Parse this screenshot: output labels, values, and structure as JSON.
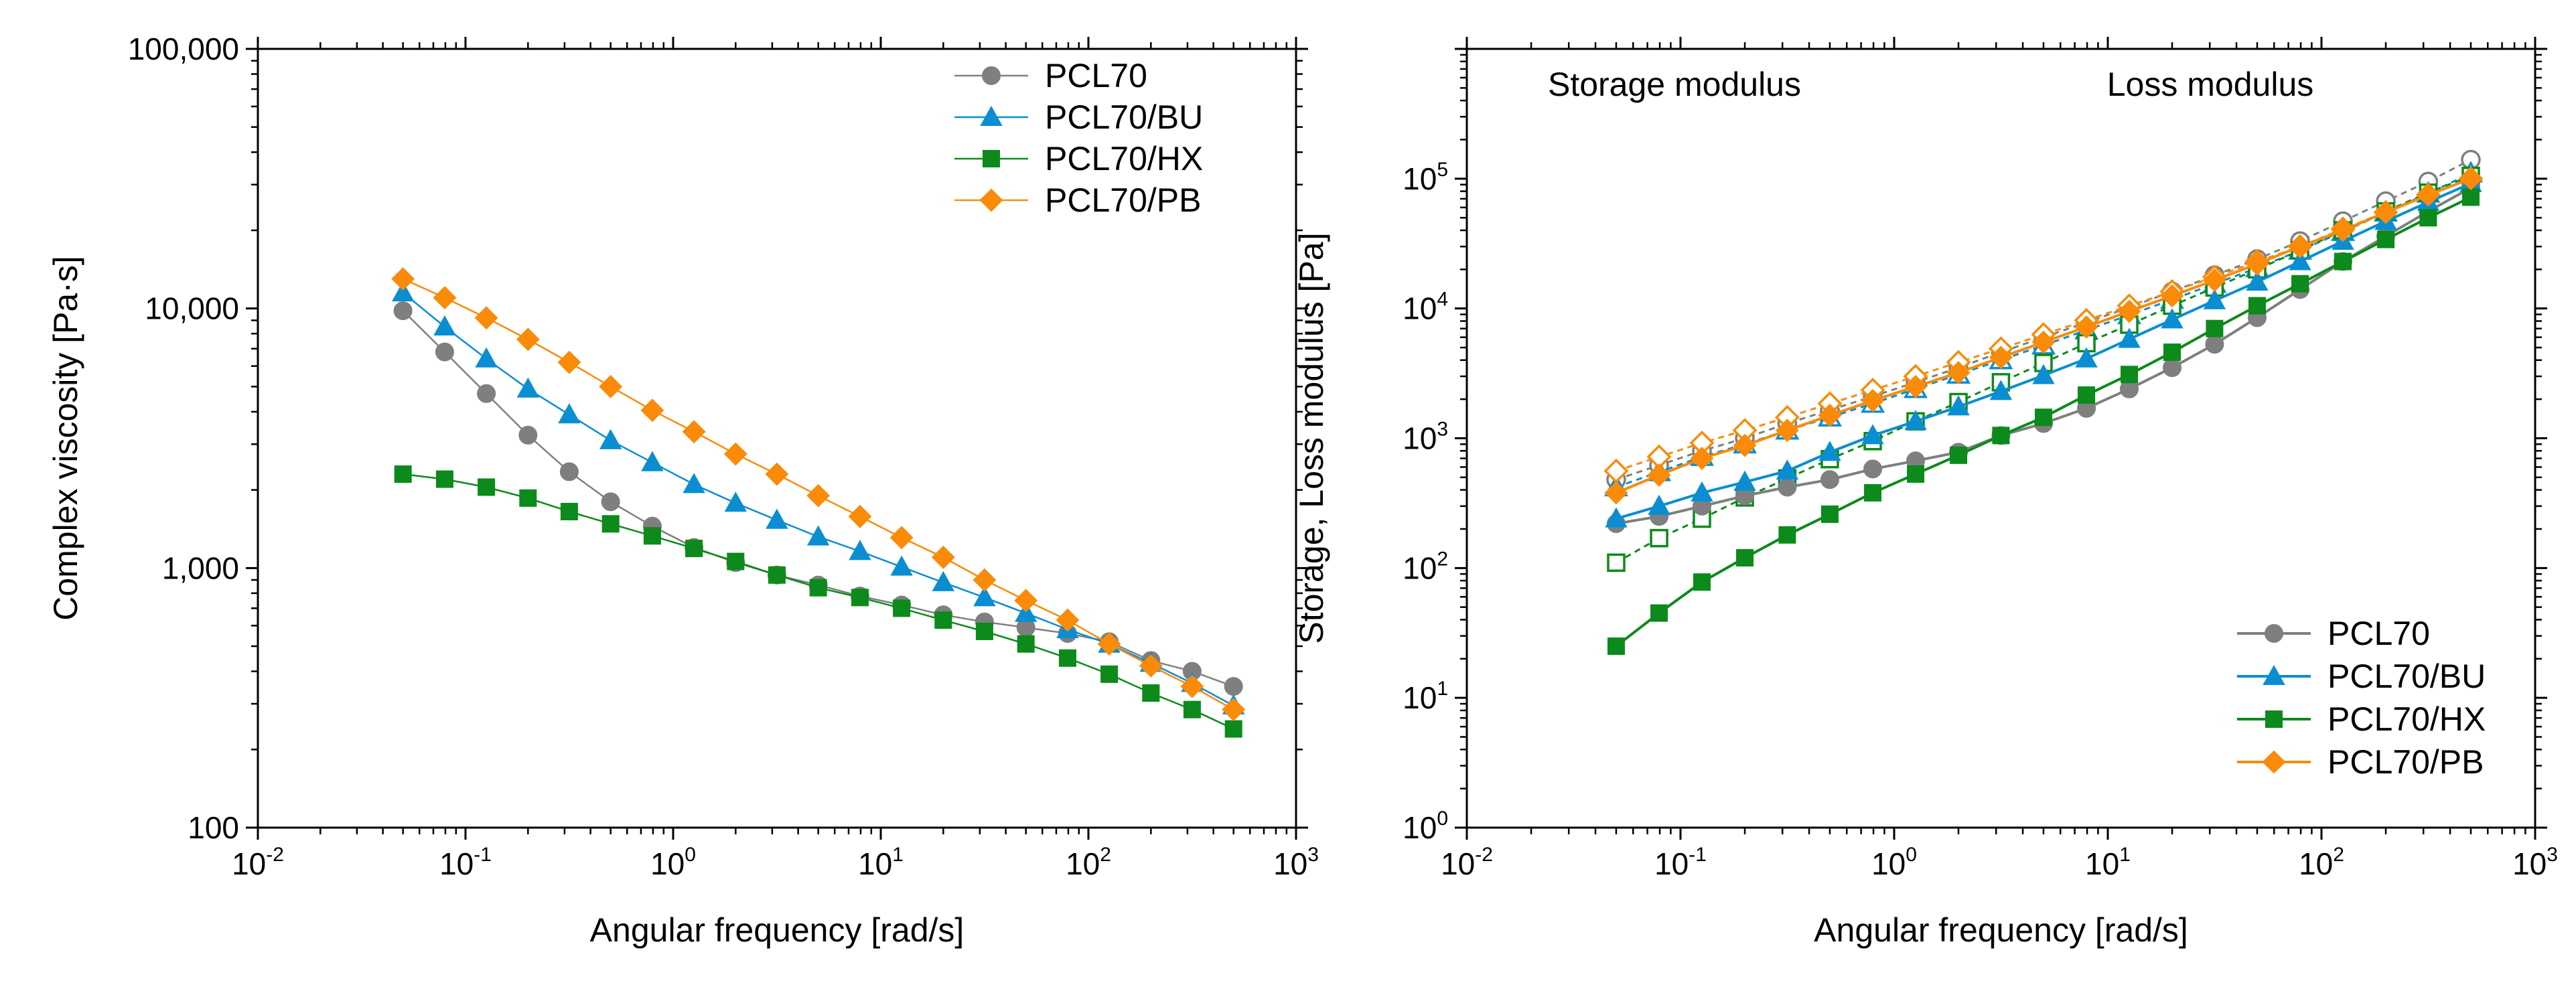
{
  "figure": {
    "left_panel": "complex-viscosity",
    "right_panel": "storage-loss-modulus"
  },
  "colors": {
    "PCL70": "#7f7f7f",
    "PCL70/BU": "#0a8ed1",
    "PCL70/HX": "#0c8a1b",
    "PCL70/PB": "#f98b09"
  },
  "chart_data": [
    {
      "type": "line",
      "scale": "log-log",
      "title": "",
      "xlabel": "Angular frequency [rad/s]",
      "ylabel": "Complex viscosity [Pa·s]",
      "xlim": [
        0.01,
        1000
      ],
      "ylim": [
        100,
        100000
      ],
      "x_ticks": [
        {
          "base": "10",
          "exp": "-2"
        },
        {
          "base": "10",
          "exp": "-1"
        },
        {
          "base": "10",
          "exp": "0"
        },
        {
          "base": "10",
          "exp": "1"
        },
        {
          "base": "10",
          "exp": "2"
        },
        {
          "base": "10",
          "exp": "3"
        }
      ],
      "y_ticks": [
        "100",
        "1,000",
        "10,000",
        "100,000"
      ],
      "legend_position": "top-right",
      "x": [
        0.05,
        0.0794,
        0.126,
        0.2,
        0.316,
        0.5,
        0.794,
        1.26,
        2.0,
        3.16,
        5.0,
        7.94,
        12.6,
        20.0,
        31.6,
        50.0,
        79.4,
        126,
        200,
        316,
        500
      ],
      "series": [
        {
          "name": "PCL70",
          "marker": "circle",
          "values": [
            9800,
            6800,
            4700,
            3250,
            2350,
            1800,
            1450,
            1200,
            1050,
            940,
            860,
            780,
            720,
            660,
            620,
            590,
            560,
            520,
            440,
            400,
            350
          ]
        },
        {
          "name": "PCL70/BU",
          "marker": "triangle",
          "values": [
            11500,
            8500,
            6400,
            4900,
            3900,
            3100,
            2550,
            2100,
            1780,
            1530,
            1320,
            1160,
            1010,
            880,
            770,
            670,
            580,
            510,
            430,
            360,
            295
          ]
        },
        {
          "name": "PCL70/HX",
          "marker": "square",
          "values": [
            2300,
            2200,
            2050,
            1860,
            1650,
            1480,
            1330,
            1190,
            1060,
            940,
            840,
            770,
            700,
            630,
            570,
            510,
            450,
            390,
            330,
            285,
            240
          ]
        },
        {
          "name": "PCL70/PB",
          "marker": "diamond",
          "values": [
            13000,
            11000,
            9200,
            7600,
            6200,
            5000,
            4050,
            3350,
            2750,
            2300,
            1900,
            1580,
            1310,
            1100,
            900,
            750,
            630,
            510,
            420,
            350,
            285
          ]
        }
      ]
    },
    {
      "type": "line",
      "scale": "log-log",
      "title": "",
      "xlabel": "Angular frequency [rad/s]",
      "ylabel": "Storage, Loss modulus [Pa]",
      "xlim": [
        0.01,
        1000
      ],
      "ylim": [
        1,
        1000000
      ],
      "x_ticks": [
        {
          "base": "10",
          "exp": "-2"
        },
        {
          "base": "10",
          "exp": "-1"
        },
        {
          "base": "10",
          "exp": "0"
        },
        {
          "base": "10",
          "exp": "1"
        },
        {
          "base": "10",
          "exp": "2"
        },
        {
          "base": "10",
          "exp": "3"
        }
      ],
      "y_ticks": [
        {
          "base": "10",
          "exp": "0"
        },
        {
          "base": "10",
          "exp": "1"
        },
        {
          "base": "10",
          "exp": "2"
        },
        {
          "base": "10",
          "exp": "3"
        },
        {
          "base": "10",
          "exp": "4"
        },
        {
          "base": "10",
          "exp": "5"
        }
      ],
      "annotations": [
        "Storage modulus",
        "Loss modulus"
      ],
      "legend_position": "bottom-right",
      "legend_note": "filled symbols + solid lines = storage modulus; open symbols + dashed lines = loss modulus",
      "x": [
        0.05,
        0.0794,
        0.126,
        0.2,
        0.316,
        0.5,
        0.794,
        1.26,
        2.0,
        3.16,
        5.0,
        7.94,
        12.6,
        20.0,
        31.6,
        50.0,
        79.4,
        126,
        200,
        316,
        500
      ],
      "series": [
        {
          "name": "PCL70",
          "marker": "circle",
          "values": [
            220,
            250,
            300,
            360,
            420,
            480,
            580,
            670,
            780,
            1050,
            1300,
            1700,
            2400,
            3500,
            5300,
            8500,
            14000,
            23000,
            36000,
            56000,
            85000
          ]
        },
        {
          "name": "PCL70/BU",
          "marker": "triangle",
          "values": [
            240,
            300,
            380,
            460,
            560,
            780,
            1050,
            1350,
            1750,
            2300,
            3050,
            4100,
            5800,
            8200,
            11500,
            16000,
            23000,
            33000,
            47000,
            66000,
            92000
          ]
        },
        {
          "name": "PCL70/HX",
          "marker": "square",
          "values": [
            25,
            45,
            78,
            120,
            180,
            260,
            380,
            530,
            740,
            1050,
            1450,
            2150,
            3100,
            4600,
            7000,
            10500,
            15500,
            23000,
            34000,
            50000,
            72000
          ]
        },
        {
          "name": "PCL70/PB",
          "marker": "diamond",
          "values": [
            380,
            520,
            700,
            880,
            1150,
            1500,
            1950,
            2500,
            3200,
            4200,
            5500,
            7200,
            9500,
            12500,
            16500,
            22000,
            30000,
            40000,
            55000,
            75000,
            100000
          ]
        },
        {
          "name": "PCL70 (loss modulus)",
          "marker": "open-circle",
          "values": [
            480,
            620,
            800,
            1000,
            1300,
            1650,
            2100,
            2700,
            3500,
            4600,
            6000,
            7800,
            10200,
            13500,
            18000,
            24000,
            33000,
            47000,
            67000,
            95000,
            140000
          ]
        },
        {
          "name": "PCL70/BU (loss modulus)",
          "marker": "open-triangle",
          "values": [
            420,
            550,
            720,
            900,
            1150,
            1450,
            1850,
            2400,
            3100,
            4000,
            5200,
            6800,
            8900,
            11700,
            15500,
            20500,
            28000,
            39000,
            55000,
            77000,
            110000
          ]
        },
        {
          "name": "PCL70/HX (loss modulus)",
          "marker": "open-square",
          "values": [
            110,
            170,
            240,
            350,
            490,
            690,
            950,
            1350,
            1900,
            2700,
            3800,
            5400,
            7500,
            10500,
            14500,
            20000,
            28000,
            40000,
            56000,
            78000,
            105000
          ]
        },
        {
          "name": "PCL70/PB (loss modulus)",
          "marker": "open-diamond",
          "values": [
            560,
            720,
            920,
            1150,
            1450,
            1850,
            2350,
            3000,
            3850,
            4900,
            6300,
            8100,
            10500,
            13500,
            17500,
            23000,
            30000,
            41000,
            55000,
            75000,
            100000
          ]
        }
      ]
    }
  ]
}
